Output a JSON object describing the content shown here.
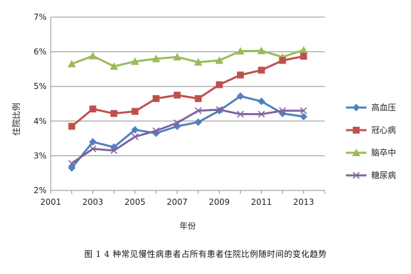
{
  "caption": "图 1   4 种常见慢性病患者占所有患者住院比例随时间的变化趋势",
  "chart_data": {
    "type": "line",
    "title": "",
    "xlabel": "年份",
    "ylabel": "住院比例",
    "xlim": [
      2001,
      2014
    ],
    "ylim": [
      2,
      7
    ],
    "x_ticks": [
      2001,
      2003,
      2005,
      2007,
      2009,
      2011,
      2013
    ],
    "x_tick_labels": [
      "2001",
      "2003",
      "2005",
      "2007",
      "2009",
      "2011",
      "2013"
    ],
    "y_ticks": [
      2,
      3,
      4,
      5,
      6,
      7
    ],
    "y_tick_labels": [
      "2%",
      "3%",
      "4%",
      "5%",
      "6%",
      "7%"
    ],
    "grid": "horizontal",
    "legend_position": "right",
    "x": [
      2002,
      2003,
      2004,
      2005,
      2006,
      2007,
      2008,
      2009,
      2010,
      2011,
      2012,
      2013
    ],
    "series": [
      {
        "name": "高血压",
        "color": "#4F81BD",
        "marker": "diamond",
        "values": [
          2.65,
          3.4,
          3.25,
          3.75,
          3.65,
          3.85,
          3.97,
          4.3,
          4.72,
          4.57,
          4.22,
          4.13
        ]
      },
      {
        "name": "冠心病",
        "color": "#C0504D",
        "marker": "square",
        "values": [
          3.85,
          4.35,
          4.22,
          4.28,
          4.65,
          4.75,
          4.65,
          5.05,
          5.33,
          5.47,
          5.75,
          5.87
        ]
      },
      {
        "name": "脑卒中",
        "color": "#9BBB59",
        "marker": "triangle",
        "values": [
          5.65,
          5.88,
          5.58,
          5.72,
          5.8,
          5.85,
          5.7,
          5.75,
          6.02,
          6.03,
          5.85,
          6.05
        ]
      },
      {
        "name": "糖尿病",
        "color": "#8064A2",
        "marker": "x",
        "values": [
          2.78,
          3.2,
          3.15,
          3.55,
          3.72,
          3.95,
          4.3,
          4.33,
          4.2,
          4.2,
          4.3,
          4.3
        ]
      }
    ]
  }
}
